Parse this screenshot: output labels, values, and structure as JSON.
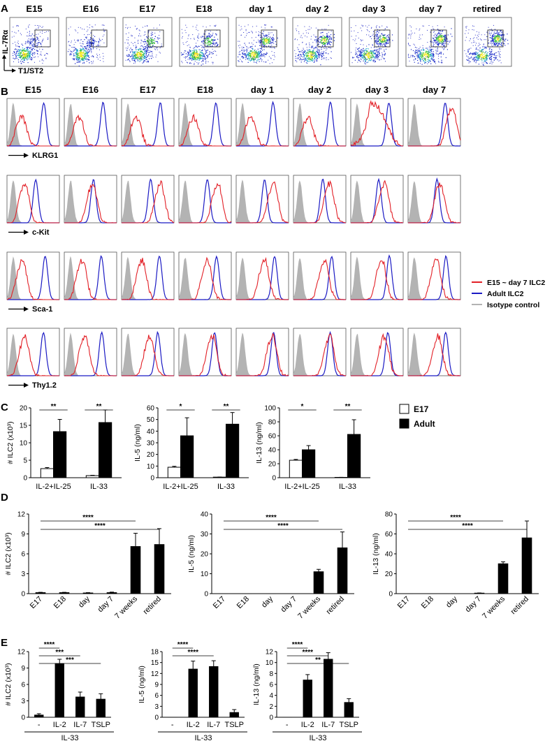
{
  "figure": {
    "panels": [
      "A",
      "B",
      "C",
      "D",
      "E"
    ]
  },
  "panelA": {
    "columns": [
      "E15",
      "E16",
      "E17",
      "E18",
      "day 1",
      "day 2",
      "day 3",
      "day 7",
      "retired"
    ],
    "y_axis": "IL-7Rα",
    "x_axis": "T1/ST2",
    "population_spread": [
      0.2,
      0.28,
      0.45,
      0.55,
      0.62,
      0.72,
      0.85,
      0.95,
      0.98
    ]
  },
  "panelB": {
    "columns": [
      "E15",
      "E16",
      "E17",
      "E18",
      "day 1",
      "day 2",
      "day 3",
      "day 7"
    ],
    "markers": [
      "KLRG1",
      "c-Kit",
      "Sca-1",
      "Thy1.2"
    ],
    "legend": {
      "red": "E15 ~ day 7 ILC2",
      "blue": "Adult ILC2",
      "gray": "Isotype control"
    },
    "red_peak_positions": {
      "KLRG1": [
        0.3,
        0.3,
        0.3,
        0.3,
        0.3,
        0.3,
        0.5,
        0.85
      ],
      "c-Kit": [
        0.35,
        0.55,
        0.75,
        0.75,
        0.72,
        0.7,
        0.65,
        0.62
      ],
      "Sca-1": [
        0.3,
        0.35,
        0.4,
        0.55,
        0.55,
        0.6,
        0.6,
        0.55
      ],
      "Thy1.2": [
        0.35,
        0.4,
        0.55,
        0.65,
        0.7,
        0.7,
        0.65,
        0.58
      ]
    },
    "blue_peak_positions": {
      "KLRG1": 0.72,
      "c-Kit": 0.55,
      "Sca-1": 0.72,
      "Thy1.2": 0.7
    },
    "colors": {
      "red": "#e21f26",
      "blue": "#1b1ac4",
      "gray": "#b3b3b3"
    }
  },
  "panelC": {
    "legend": {
      "e17": "E17",
      "adult": "Adult"
    },
    "categories": [
      "IL-2+IL-25",
      "IL-33"
    ],
    "charts": [
      {
        "ylabel": "# ILC2 (x10³)",
        "ymax": 20,
        "yticks": [
          0,
          5,
          10,
          15,
          20
        ],
        "e17": [
          2.6,
          0.6
        ],
        "e17_err": [
          0.3,
          0.1
        ],
        "adult": [
          13.2,
          15.8
        ],
        "adult_err": [
          3.5,
          3.6
        ],
        "sig": [
          "**",
          "**"
        ]
      },
      {
        "ylabel": "IL-5 (ng/ml)",
        "ymax": 60,
        "yticks": [
          0,
          10,
          20,
          30,
          40,
          50,
          60
        ],
        "e17": [
          9,
          0.5
        ],
        "e17_err": [
          0.8,
          0.1
        ],
        "adult": [
          36,
          46
        ],
        "adult_err": [
          15.5,
          10
        ],
        "sig": [
          "*",
          "**"
        ]
      },
      {
        "ylabel": "IL-13 (ng/ml)",
        "ymax": 100,
        "yticks": [
          0,
          20,
          40,
          60,
          80,
          100
        ],
        "e17": [
          25,
          0.5
        ],
        "e17_err": [
          1.2,
          0.1
        ],
        "adult": [
          40,
          62
        ],
        "adult_err": [
          6,
          21
        ],
        "sig": [
          "*",
          "**"
        ]
      }
    ]
  },
  "panelD": {
    "categories": [
      "E17",
      "E18",
      "day",
      "day 7",
      "7 weeks",
      "retired"
    ],
    "charts": [
      {
        "ylabel": "# ILC2 (x10³)",
        "ymax": 12,
        "yticks": [
          0,
          3,
          6,
          9,
          12
        ],
        "values": [
          0.15,
          0.15,
          0.1,
          0.15,
          7.1,
          7.4
        ],
        "err": [
          0.05,
          0.05,
          0.05,
          0.08,
          2.0,
          2.4
        ],
        "sig": [
          {
            "from": 0,
            "to": 4,
            "label": "****"
          },
          {
            "from": 0,
            "to": 5,
            "label": "****"
          }
        ]
      },
      {
        "ylabel": "IL-5 (ng/ml)",
        "ymax": 40,
        "yticks": [
          0,
          10,
          20,
          30,
          40
        ],
        "values": [
          0,
          0,
          0,
          0,
          11,
          23
        ],
        "err": [
          0,
          0,
          0,
          0,
          1.2,
          8
        ],
        "sig": [
          {
            "from": 0,
            "to": 4,
            "label": "****"
          },
          {
            "from": 0,
            "to": 5,
            "label": "****"
          }
        ]
      },
      {
        "ylabel": "IL-13 (ng/ml)",
        "ymax": 80,
        "yticks": [
          0,
          20,
          40,
          60,
          80
        ],
        "values": [
          0,
          0,
          0,
          0.5,
          30,
          56
        ],
        "err": [
          0,
          0,
          0,
          0.2,
          2,
          17
        ],
        "sig": [
          {
            "from": 0,
            "to": 4,
            "label": "****"
          },
          {
            "from": 0,
            "to": 5,
            "label": "****"
          }
        ]
      }
    ]
  },
  "panelE": {
    "categories": [
      "-",
      "IL-2",
      "IL-7",
      "TSLP"
    ],
    "group_label": "IL-33",
    "charts": [
      {
        "ylabel": "# ILC2 (x10³)",
        "ymax": 12,
        "yticks": [
          0,
          3,
          6,
          9,
          12
        ],
        "values": [
          0.4,
          9.8,
          3.7,
          3.3
        ],
        "err": [
          0.25,
          0.8,
          0.9,
          1.0
        ],
        "sig": [
          {
            "from": 0,
            "to": 1,
            "label": "****"
          },
          {
            "from": 0,
            "to": 2,
            "label": "***"
          },
          {
            "from": 0,
            "to": 3,
            "label": "***"
          }
        ]
      },
      {
        "ylabel": "IL-5 (ng/ml)",
        "ymax": 18,
        "yticks": [
          0,
          3,
          6,
          9,
          12,
          15,
          18
        ],
        "values": [
          0,
          13.2,
          13.9,
          1.3
        ],
        "err": [
          0,
          2.2,
          1.6,
          0.8
        ],
        "sig": [
          {
            "from": 0,
            "to": 1,
            "label": "****"
          },
          {
            "from": 0,
            "to": 2,
            "label": "****"
          }
        ]
      },
      {
        "ylabel": "IL-13 (ng/ml)",
        "ymax": 12,
        "yticks": [
          0,
          2,
          4,
          6,
          8,
          10,
          12
        ],
        "values": [
          0,
          6.8,
          10.6,
          2.7
        ],
        "err": [
          0,
          1.0,
          1.2,
          0.7
        ],
        "sig": [
          {
            "from": 0,
            "to": 1,
            "label": "****"
          },
          {
            "from": 0,
            "to": 2,
            "label": "****"
          },
          {
            "from": 0,
            "to": 3,
            "label": "**"
          }
        ]
      }
    ]
  },
  "chart_data": [
    {
      "type": "bar",
      "title": "C: # ILC2",
      "categories": [
        "IL-2+IL-25",
        "IL-33"
      ],
      "series": [
        {
          "name": "E17",
          "values": [
            2.6,
            0.6
          ]
        },
        {
          "name": "Adult",
          "values": [
            13.2,
            15.8
          ]
        }
      ],
      "ylabel": "# ILC2 (x10³)",
      "ylim": [
        0,
        20
      ]
    },
    {
      "type": "bar",
      "title": "C: IL-5",
      "categories": [
        "IL-2+IL-25",
        "IL-33"
      ],
      "series": [
        {
          "name": "E17",
          "values": [
            9,
            0.5
          ]
        },
        {
          "name": "Adult",
          "values": [
            36,
            46
          ]
        }
      ],
      "ylabel": "IL-5 (ng/ml)",
      "ylim": [
        0,
        60
      ]
    },
    {
      "type": "bar",
      "title": "C: IL-13",
      "categories": [
        "IL-2+IL-25",
        "IL-33"
      ],
      "series": [
        {
          "name": "E17",
          "values": [
            25,
            0.5
          ]
        },
        {
          "name": "Adult",
          "values": [
            40,
            62
          ]
        }
      ],
      "ylabel": "IL-13 (ng/ml)",
      "ylim": [
        0,
        100
      ]
    },
    {
      "type": "bar",
      "title": "D: # ILC2",
      "categories": [
        "E17",
        "E18",
        "day",
        "day 7",
        "7 weeks",
        "retired"
      ],
      "values": [
        0.15,
        0.15,
        0.1,
        0.15,
        7.1,
        7.4
      ],
      "ylabel": "# ILC2 (x10³)",
      "ylim": [
        0,
        12
      ]
    },
    {
      "type": "bar",
      "title": "D: IL-5",
      "categories": [
        "E17",
        "E18",
        "day",
        "day 7",
        "7 weeks",
        "retired"
      ],
      "values": [
        0,
        0,
        0,
        0,
        11,
        23
      ],
      "ylabel": "IL-5 (ng/ml)",
      "ylim": [
        0,
        40
      ]
    },
    {
      "type": "bar",
      "title": "D: IL-13",
      "categories": [
        "E17",
        "E18",
        "day",
        "day 7",
        "7 weeks",
        "retired"
      ],
      "values": [
        0,
        0,
        0,
        0.5,
        30,
        56
      ],
      "ylabel": "IL-13 (ng/ml)",
      "ylim": [
        0,
        80
      ]
    },
    {
      "type": "bar",
      "title": "E: # ILC2",
      "categories": [
        "-",
        "IL-2",
        "IL-7",
        "TSLP"
      ],
      "values": [
        0.4,
        9.8,
        3.7,
        3.3
      ],
      "xlabel": "IL-33",
      "ylabel": "# ILC2 (x10³)",
      "ylim": [
        0,
        12
      ]
    },
    {
      "type": "bar",
      "title": "E: IL-5",
      "categories": [
        "-",
        "IL-2",
        "IL-7",
        "TSLP"
      ],
      "values": [
        0,
        13.2,
        13.9,
        1.3
      ],
      "xlabel": "IL-33",
      "ylabel": "IL-5 (ng/ml)",
      "ylim": [
        0,
        18
      ]
    },
    {
      "type": "bar",
      "title": "E: IL-13",
      "categories": [
        "-",
        "IL-2",
        "IL-7",
        "TSLP"
      ],
      "values": [
        0,
        6.8,
        10.6,
        2.7
      ],
      "xlabel": "IL-33",
      "ylabel": "IL-13 (ng/ml)",
      "ylim": [
        0,
        12
      ]
    }
  ]
}
